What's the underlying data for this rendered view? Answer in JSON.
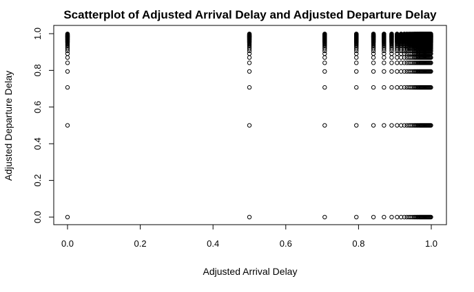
{
  "chart_data": {
    "type": "scatter",
    "title": "Scatterplot of Adjusted Arrival Delay and Adjusted Departure Delay",
    "xlabel": "Adjusted Arrival Delay",
    "ylabel": "Adjusted Departure Delay",
    "xlim": [
      0,
      1
    ],
    "ylim": [
      0,
      1
    ],
    "x_ticks": [
      "0.0",
      "0.2",
      "0.4",
      "0.6",
      "0.8",
      "1.0"
    ],
    "y_ticks": [
      "0.0",
      "0.2",
      "0.4",
      "0.6",
      "0.8",
      "1.0"
    ],
    "grid": false,
    "marker": "open-circle",
    "x_levels": [
      0,
      0.5,
      0.707,
      0.794,
      0.841,
      0.87,
      0.891,
      0.906,
      0.917,
      0.926,
      0.933,
      0.939,
      0.944,
      0.949,
      0.953,
      0.956,
      0.959,
      0.962,
      0.964,
      0.967,
      0.969,
      0.971,
      0.973,
      0.975,
      0.977,
      0.979,
      0.981,
      0.983,
      0.985,
      0.987,
      0.989,
      0.991,
      0.993,
      0.995,
      0.997,
      0.999
    ],
    "y_levels": [
      0,
      0.5,
      0.707,
      0.794,
      0.841,
      0.87,
      0.891,
      0.906,
      0.917,
      0.926,
      0.933,
      0.939,
      0.944,
      0.949,
      0.953,
      0.956,
      0.959,
      0.962,
      0.964,
      0.967,
      0.969,
      0.971,
      0.973,
      0.975,
      0.977,
      0.979,
      0.981,
      0.983,
      0.985,
      0.987,
      0.989,
      0.991,
      0.993,
      0.995,
      0.997,
      0.999
    ],
    "points_description_note": ""
  }
}
